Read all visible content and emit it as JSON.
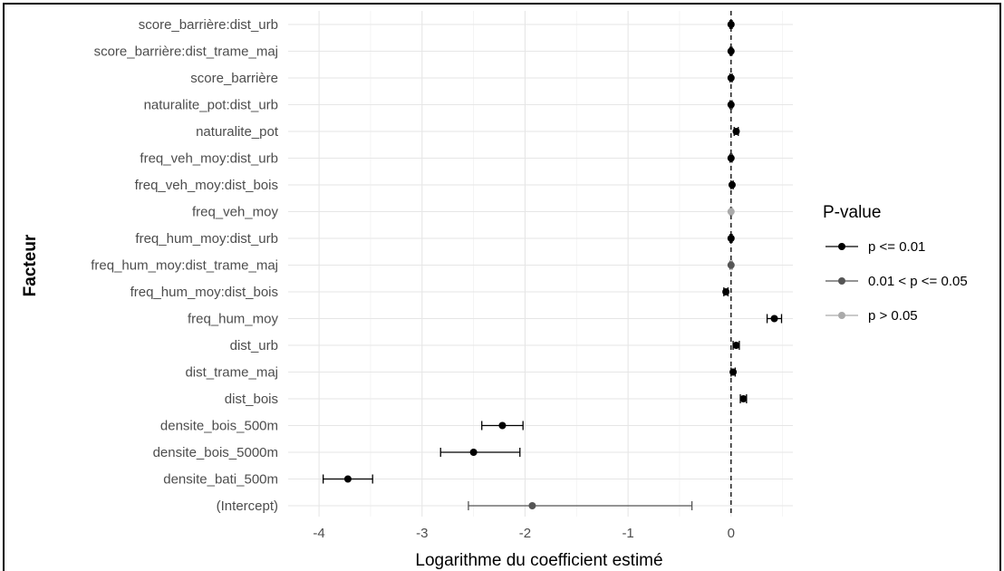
{
  "chart_data": {
    "type": "scatter",
    "xlabel": "Logarithme du coefficient estimé",
    "ylabel": "Facteur",
    "xlim": [
      -4.3,
      0.6
    ],
    "xticks": [
      -4,
      -3,
      -2,
      -1,
      0
    ],
    "grid": true,
    "reference_line": 0,
    "legend": {
      "title": "P-value",
      "placement": "right",
      "entries": [
        {
          "label": "p <= 0.01",
          "color": "#000000"
        },
        {
          "label": "0.01 < p <= 0.05",
          "color": "#555555"
        },
        {
          "label": "p > 0.05",
          "color": "#aaaaaa"
        }
      ]
    },
    "points": [
      {
        "factor": "score_barrière:dist_urb",
        "estimate": 0.0,
        "low": -0.01,
        "high": 0.01,
        "group": 0
      },
      {
        "factor": "score_barrière:dist_trame_maj",
        "estimate": 0.0,
        "low": -0.01,
        "high": 0.01,
        "group": 0
      },
      {
        "factor": "score_barrière",
        "estimate": 0.0,
        "low": -0.01,
        "high": 0.01,
        "group": 0
      },
      {
        "factor": "naturalite_pot:dist_urb",
        "estimate": 0.0,
        "low": -0.01,
        "high": 0.01,
        "group": 0
      },
      {
        "factor": "naturalite_pot",
        "estimate": 0.05,
        "low": 0.03,
        "high": 0.07,
        "group": 0
      },
      {
        "factor": "freq_veh_moy:dist_urb",
        "estimate": 0.0,
        "low": -0.01,
        "high": 0.01,
        "group": 0
      },
      {
        "factor": "freq_veh_moy:dist_bois",
        "estimate": 0.01,
        "low": 0.0,
        "high": 0.02,
        "group": 0
      },
      {
        "factor": "freq_veh_moy",
        "estimate": 0.0,
        "low": -0.01,
        "high": 0.01,
        "group": 2
      },
      {
        "factor": "freq_hum_moy:dist_urb",
        "estimate": 0.0,
        "low": -0.01,
        "high": 0.01,
        "group": 0
      },
      {
        "factor": "freq_hum_moy:dist_trame_maj",
        "estimate": 0.0,
        "low": -0.01,
        "high": 0.01,
        "group": 1
      },
      {
        "factor": "freq_hum_moy:dist_bois",
        "estimate": -0.05,
        "low": -0.07,
        "high": -0.03,
        "group": 0
      },
      {
        "factor": "freq_hum_moy",
        "estimate": 0.42,
        "low": 0.35,
        "high": 0.49,
        "group": 0
      },
      {
        "factor": "dist_urb",
        "estimate": 0.05,
        "low": 0.02,
        "high": 0.08,
        "group": 0
      },
      {
        "factor": "dist_trame_maj",
        "estimate": 0.02,
        "low": 0.0,
        "high": 0.04,
        "group": 0
      },
      {
        "factor": "dist_bois",
        "estimate": 0.12,
        "low": 0.09,
        "high": 0.15,
        "group": 0
      },
      {
        "factor": "densite_bois_500m",
        "estimate": -2.22,
        "low": -2.42,
        "high": -2.02,
        "group": 0
      },
      {
        "factor": "densite_bois_5000m",
        "estimate": -2.5,
        "low": -2.82,
        "high": -2.05,
        "group": 0
      },
      {
        "factor": "densite_bati_500m",
        "estimate": -3.72,
        "low": -3.96,
        "high": -3.48,
        "group": 0
      },
      {
        "factor": "(Intercept)",
        "estimate": -1.93,
        "low": -2.55,
        "high": -0.38,
        "group": 1
      }
    ]
  }
}
